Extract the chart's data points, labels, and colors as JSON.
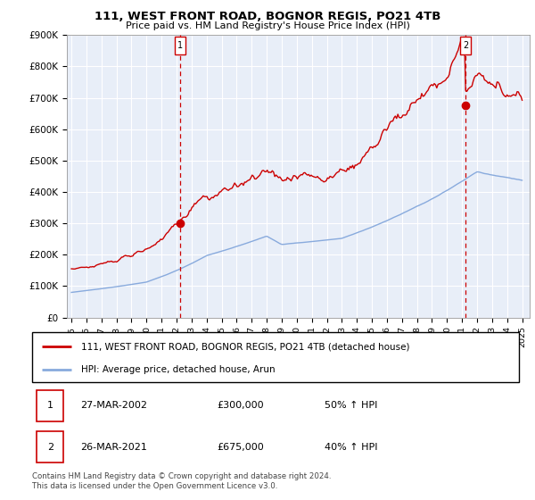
{
  "title": "111, WEST FRONT ROAD, BOGNOR REGIS, PO21 4TB",
  "subtitle": "Price paid vs. HM Land Registry's House Price Index (HPI)",
  "ylim": [
    0,
    900000
  ],
  "yticks": [
    0,
    100000,
    200000,
    300000,
    400000,
    500000,
    600000,
    700000,
    800000,
    900000
  ],
  "ytick_labels": [
    "£0",
    "£100K",
    "£200K",
    "£300K",
    "£400K",
    "£500K",
    "£600K",
    "£700K",
    "£800K",
    "£900K"
  ],
  "xlim_start": 1994.7,
  "xlim_end": 2025.5,
  "legend_line1": "111, WEST FRONT ROAD, BOGNOR REGIS, PO21 4TB (detached house)",
  "legend_line2": "HPI: Average price, detached house, Arun",
  "transactions": [
    {
      "num": "1",
      "date": "27-MAR-2002",
      "price": "£300,000",
      "hpi": "50% ↑ HPI"
    },
    {
      "num": "2",
      "date": "26-MAR-2021",
      "price": "£675,000",
      "hpi": "40% ↑ HPI"
    }
  ],
  "footer": "Contains HM Land Registry data © Crown copyright and database right 2024.\nThis data is licensed under the Open Government Licence v3.0.",
  "property_color": "#cc0000",
  "hpi_color": "#88aadd",
  "vline_color": "#cc0000",
  "marker1_x": 2002.23,
  "marker1_y": 300000,
  "marker2_x": 2021.23,
  "marker2_y": 675000,
  "chart_bg": "#e8eef8",
  "background_color": "#ffffff",
  "grid_color": "#ffffff"
}
